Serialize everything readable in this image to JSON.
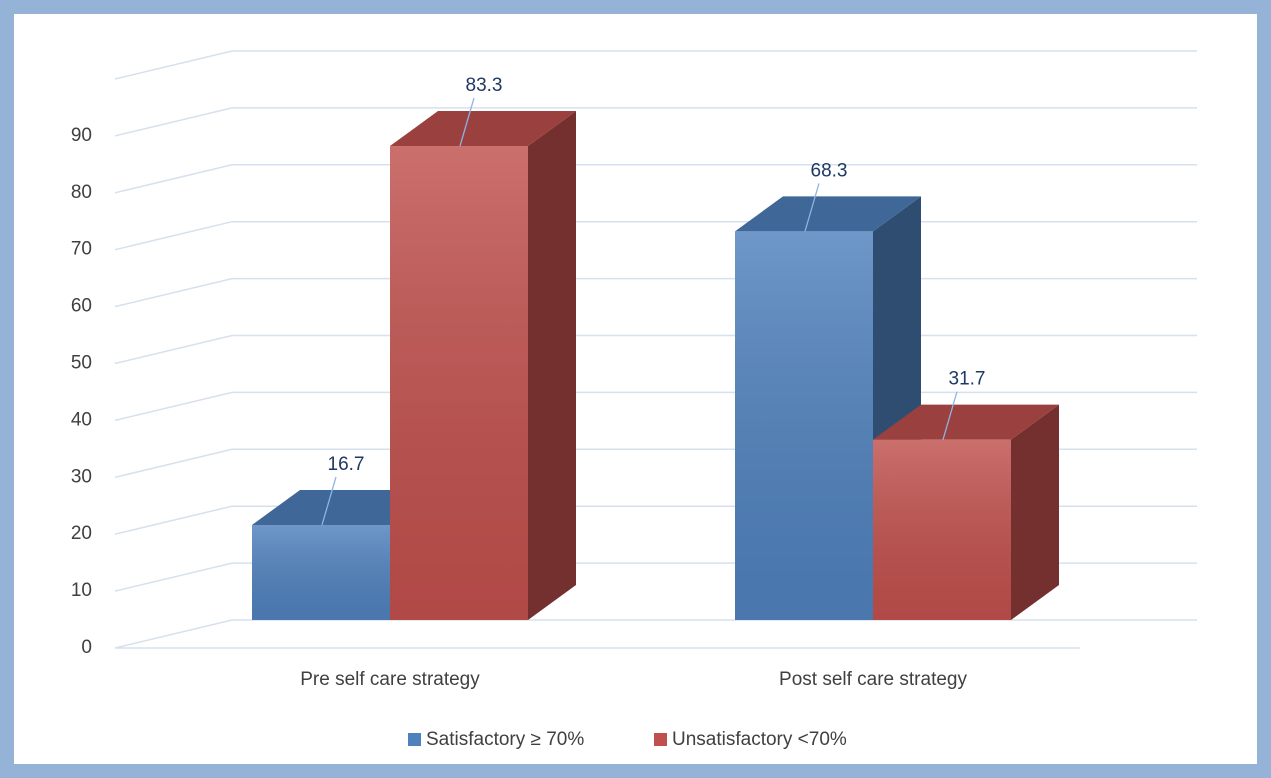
{
  "chart_data": {
    "type": "bar3d",
    "categories": [
      "Pre self care strategy",
      "Post self care strategy"
    ],
    "series": [
      {
        "name": "Satisfactory ≥ 70%",
        "color": "#4f81bd",
        "values": [
          16.7,
          68.3
        ]
      },
      {
        "name": "Unsatisfactory <70%",
        "color": "#c0504d",
        "values": [
          83.3,
          31.7
        ]
      }
    ],
    "ylim": [
      0,
      100
    ],
    "yticks": [
      0,
      10,
      20,
      30,
      40,
      50,
      60,
      70,
      80,
      90
    ],
    "grid": true,
    "legend": "bottom"
  }
}
